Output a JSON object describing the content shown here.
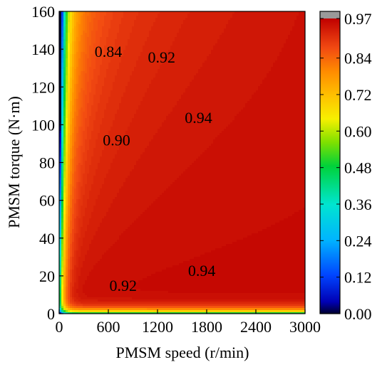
{
  "chart_data": {
    "type": "heatmap",
    "subtype": "filled-contour",
    "xlabel": "PMSM speed (r/min)",
    "ylabel": "PMSM torque (N·m)",
    "xlim": [
      0,
      3000
    ],
    "ylim": [
      0,
      160
    ],
    "x_ticks": [
      "0",
      "600",
      "1200",
      "1800",
      "2400",
      "3000"
    ],
    "y_ticks": [
      "0",
      "20",
      "40",
      "60",
      "80",
      "100",
      "120",
      "140",
      "160"
    ],
    "colorbar": {
      "range": [
        0.0,
        0.97
      ],
      "ticks": [
        "0.00",
        "0.12",
        "0.24",
        "0.36",
        "0.48",
        "0.60",
        "0.72",
        "0.84",
        "0.97"
      ]
    },
    "contour_labels": [
      {
        "text": "0.84",
        "speed": 600,
        "torque": 139
      },
      {
        "text": "0.92",
        "speed": 1250,
        "torque": 136
      },
      {
        "text": "0.94",
        "speed": 1700,
        "torque": 104
      },
      {
        "text": "0.90",
        "speed": 700,
        "torque": 92
      },
      {
        "text": "0.94",
        "speed": 1740,
        "torque": 23
      },
      {
        "text": "0.92",
        "speed": 780,
        "torque": 15
      }
    ],
    "grid": false,
    "legend": "colorbar-right"
  }
}
